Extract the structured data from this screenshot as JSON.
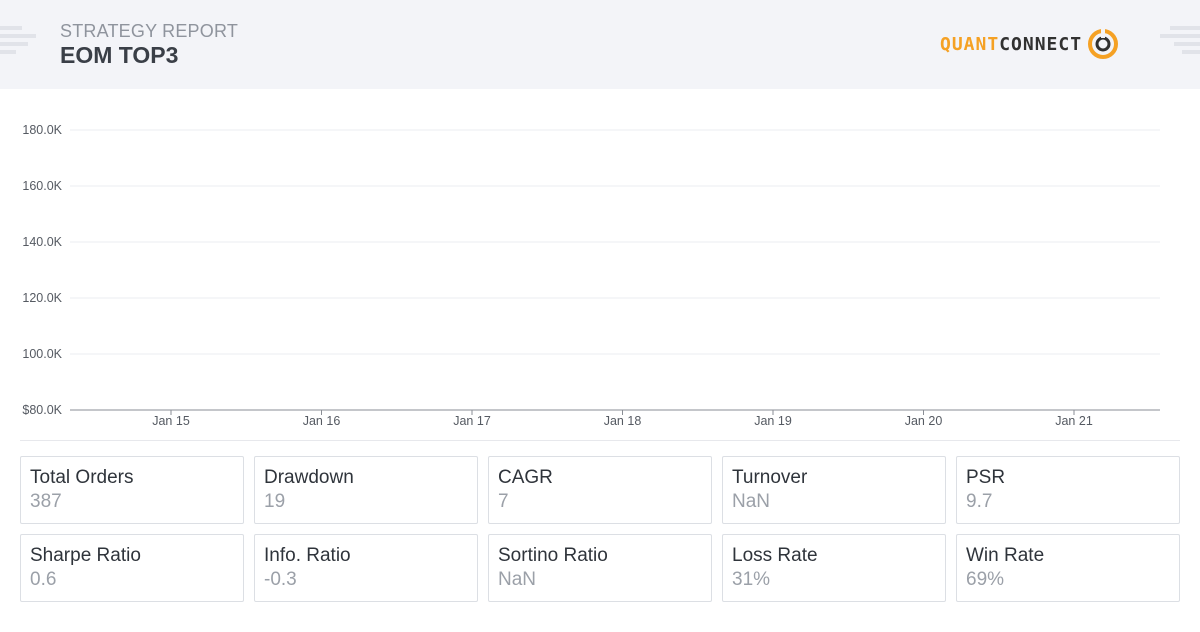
{
  "header": {
    "subtitle": "STRATEGY REPORT",
    "title": "EOM TOP3",
    "logo": {
      "word1": "QUANT",
      "word2": "CONNECT"
    }
  },
  "colors": {
    "header_bg": "#f3f4f8",
    "accent": "#f5a124",
    "text_dark": "#2f343b",
    "text_muted": "#9ba0a8"
  },
  "chart_data": {
    "type": "line",
    "title": "",
    "xlabel": "",
    "ylabel": "",
    "y_ticks": [
      "$80.0K",
      "100.0K",
      "120.0K",
      "140.0K",
      "160.0K",
      "180.0K"
    ],
    "y_values": [
      80000,
      100000,
      120000,
      140000,
      160000,
      180000
    ],
    "ylim": [
      80000,
      180000
    ],
    "x_ticks": [
      "Jan 15",
      "Jan 16",
      "Jan 17",
      "Jan 18",
      "Jan 19",
      "Jan 20",
      "Jan 21"
    ],
    "grid": true,
    "series": []
  },
  "stats": [
    {
      "label": "Total Orders",
      "value": "387"
    },
    {
      "label": "Drawdown",
      "value": "19"
    },
    {
      "label": "CAGR",
      "value": "7"
    },
    {
      "label": "Turnover",
      "value": "NaN"
    },
    {
      "label": "PSR",
      "value": "9.7"
    },
    {
      "label": "Sharpe Ratio",
      "value": "0.6"
    },
    {
      "label": "Info. Ratio",
      "value": "-0.3"
    },
    {
      "label": "Sortino Ratio",
      "value": "NaN"
    },
    {
      "label": "Loss Rate",
      "value": "31%"
    },
    {
      "label": "Win Rate",
      "value": "69%"
    }
  ]
}
